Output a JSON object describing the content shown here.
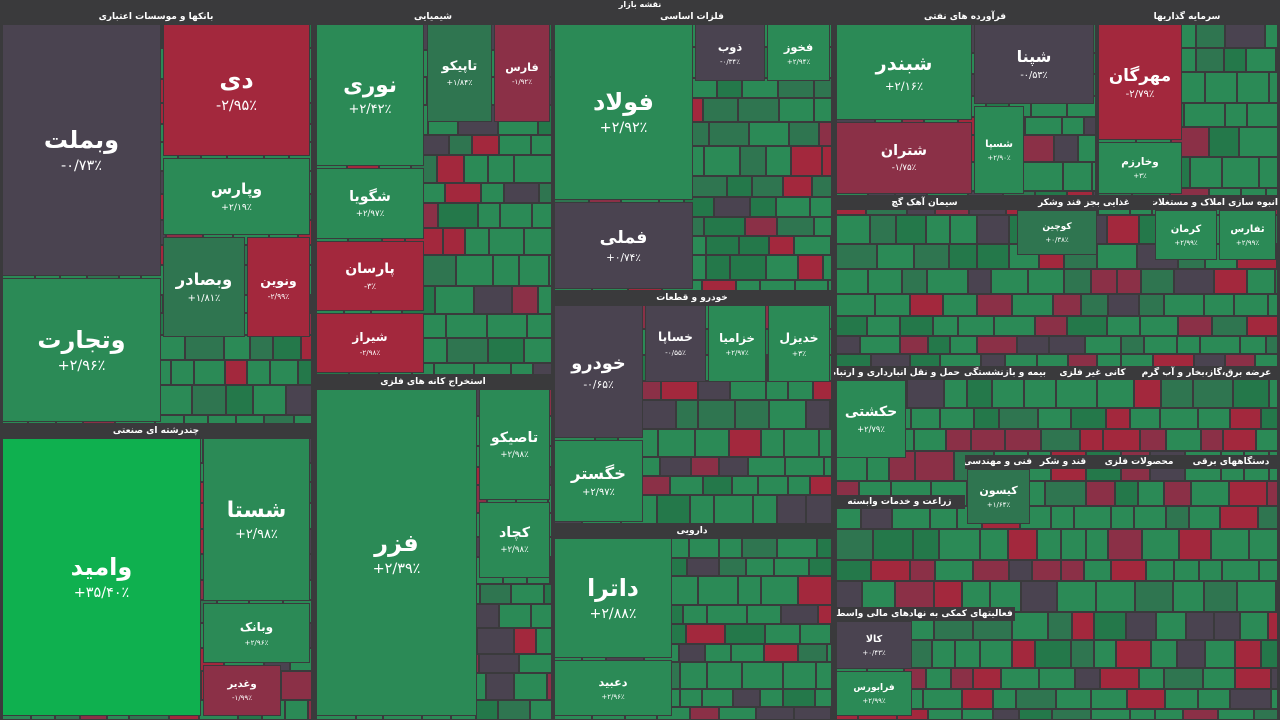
{
  "title": "نقشه بازار",
  "sectors": [
    {
      "name": "بانکها و موسسات اعتباری",
      "tiles": [
        {
          "symbol": "وبملت",
          "change": "-۰/۷۳٪",
          "color": "#4a4350"
        },
        {
          "symbol": "دی",
          "change": "-۲/۹۵٪",
          "color": "#a3283d"
        },
        {
          "symbol": "وپارس",
          "change": "+۲/۱۹٪",
          "color": "#2b8a56"
        },
        {
          "symbol": "وتجارت",
          "change": "+۲/۹۶٪",
          "color": "#2b8a56"
        },
        {
          "symbol": "وبصادر",
          "change": "+۱/۸۱٪",
          "color": "#2f7550"
        },
        {
          "symbol": "ونوین",
          "change": "-۲/۹۹٪",
          "color": "#a3283d"
        }
      ]
    },
    {
      "name": "چندرشته ای صنعتی",
      "tiles": [
        {
          "symbol": "وامید",
          "change": "+۳۵/۴۰٪",
          "color": "#0fb04f"
        },
        {
          "symbol": "شستا",
          "change": "+۲/۹۸٪",
          "color": "#2b8a56"
        },
        {
          "symbol": "وبانک",
          "change": "+۲/۹۶٪",
          "color": "#2b8a56"
        },
        {
          "symbol": "وغدیر",
          "change": "-۱/۹۹٪",
          "color": "#8b3047"
        }
      ]
    },
    {
      "name": "شیمیایی",
      "tiles": [
        {
          "symbol": "نوری",
          "change": "+۲/۴۲٪",
          "color": "#2b8a56"
        },
        {
          "symbol": "شگویا",
          "change": "+۲/۹۷٪",
          "color": "#2b8a56"
        },
        {
          "symbol": "پارسان",
          "change": "-۳٪",
          "color": "#a3283d"
        },
        {
          "symbol": "شیراز",
          "change": "-۲/۹۸٪",
          "color": "#a3283d"
        },
        {
          "symbol": "تاپیکو",
          "change": "+۱/۸۴٪",
          "color": "#2f7550"
        },
        {
          "symbol": "فارس",
          "change": "-۱/۹۲٪",
          "color": "#8b3047"
        }
      ]
    },
    {
      "name": "استخراج کانه های فلزی",
      "tiles": [
        {
          "symbol": "فزر",
          "change": "+۲/۳۹٪",
          "color": "#2b8a56"
        },
        {
          "symbol": "تاصیکو",
          "change": "+۲/۹۸٪",
          "color": "#2b8a56"
        },
        {
          "symbol": "کچاد",
          "change": "+۲/۹۸٪",
          "color": "#2b8a56"
        }
      ]
    },
    {
      "name": "فلزات اساسی",
      "tiles": [
        {
          "symbol": "فولاد",
          "change": "+۲/۹۲٪",
          "color": "#2b8a56"
        },
        {
          "symbol": "فملی",
          "change": "+۰/۷۴٪",
          "color": "#4a4350"
        },
        {
          "symbol": "ذوب",
          "change": "-۰/۳۴٪",
          "color": "#4a4350"
        },
        {
          "symbol": "فخوز",
          "change": "+۲/۹۴٪",
          "color": "#2b8a56"
        }
      ]
    },
    {
      "name": "خودرو و قطعات",
      "tiles": [
        {
          "symbol": "خودرو",
          "change": "-۰/۶۵٪",
          "color": "#4a4350"
        },
        {
          "symbol": "خگستر",
          "change": "+۲/۹۷٪",
          "color": "#2b8a56"
        },
        {
          "symbol": "خساپا",
          "change": "-۰/۵۵٪",
          "color": "#4a4350"
        },
        {
          "symbol": "خزامیا",
          "change": "+۲/۹۷٪",
          "color": "#2b8a56"
        },
        {
          "symbol": "خدیزل",
          "change": "+۳٪",
          "color": "#2b8a56"
        }
      ]
    },
    {
      "name": "دارویی",
      "tiles": [
        {
          "symbol": "داترا",
          "change": "+۲/۸۸٪",
          "color": "#2b8a56"
        },
        {
          "symbol": "دعبید",
          "change": "+۲/۹۶٪",
          "color": "#2b8a56"
        }
      ]
    },
    {
      "name": "فرآورده های نفتی",
      "tiles": [
        {
          "symbol": "شبندر",
          "change": "+۲/۱۶٪",
          "color": "#2b8a56"
        },
        {
          "symbol": "شپنا",
          "change": "-۰/۵۳٪",
          "color": "#4a4350"
        },
        {
          "symbol": "شتران",
          "change": "-۱/۷۵٪",
          "color": "#8b3047"
        },
        {
          "symbol": "شسپا",
          "change": "+۲/۹۰٪",
          "color": "#2b8a56"
        }
      ]
    },
    {
      "name": "سرمایه گذاریها",
      "tiles": [
        {
          "symbol": "مهرگان",
          "change": "-۲/۷۹٪",
          "color": "#a3283d"
        },
        {
          "symbol": "وخارزم",
          "change": "+۳٪",
          "color": "#2b8a56"
        }
      ]
    },
    {
      "name": "سیمان آهک گچ",
      "tiles": []
    },
    {
      "name": "غذایی بجز قند وشکر",
      "tiles": [
        {
          "symbol": "کوچین",
          "change": "+۰/۳۸٪",
          "color": "#2f7550"
        }
      ]
    },
    {
      "name": "انبوه سازی املاک و مستغلات",
      "tiles": [
        {
          "symbol": "کرمان",
          "change": "+۲/۹۹٪",
          "color": "#2b8a56"
        },
        {
          "symbol": "ثفارس",
          "change": "+۲/۹۹٪",
          "color": "#2b8a56"
        }
      ]
    },
    {
      "name": "حمل و نقل انبارداری و ارتباطات",
      "tiles": [
        {
          "symbol": "حکشتی",
          "change": "+۲/۷۹٪",
          "color": "#2b8a56"
        }
      ]
    },
    {
      "name": "بیمه و بازنشستگی",
      "tiles": []
    },
    {
      "name": "کانی غیر فلزی",
      "tiles": []
    },
    {
      "name": "عرضه برق،گاز،بخار و آب گرم",
      "tiles": []
    },
    {
      "name": "زراعت و خدمات وابسته",
      "tiles": []
    },
    {
      "name": "فعالیتهای کمکی به نهادهای مالی واسط",
      "tiles": [
        {
          "symbol": "کالا",
          "change": "+۰/۴۳٪",
          "color": "#4a4350"
        },
        {
          "symbol": "فرابورس",
          "change": "+۲/۹۹٪",
          "color": "#2b8a56"
        }
      ]
    },
    {
      "name": "فنی و مهندسی",
      "tiles": [
        {
          "symbol": "کیسون",
          "change": "+۱/۶۴٪",
          "color": "#2f7550"
        }
      ]
    },
    {
      "name": "قند و شکر",
      "tiles": []
    },
    {
      "name": "محصولات فلزی",
      "tiles": []
    },
    {
      "name": "دستگاههای برقی",
      "tiles": []
    }
  ]
}
